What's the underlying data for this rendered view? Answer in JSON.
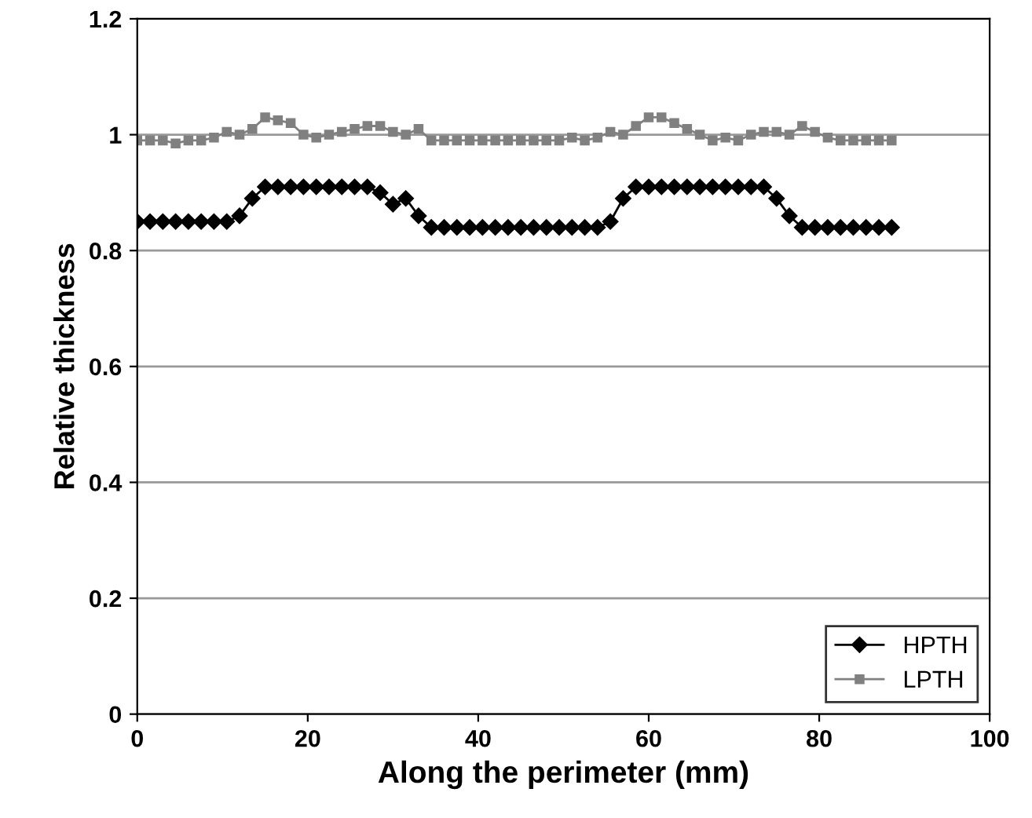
{
  "chart_data": {
    "type": "line",
    "xlabel": "Along the perimeter (mm)",
    "ylabel": "Relative thickness",
    "xlim": [
      0,
      100
    ],
    "xticks": [
      0,
      20,
      40,
      60,
      80,
      100
    ],
    "ylim": [
      0,
      1.2
    ],
    "yticks": [
      0,
      0.2,
      0.4,
      0.6,
      0.8,
      1,
      1.2
    ],
    "grid": "y",
    "legend": "bottom right",
    "series": [
      {
        "name": "HPTH",
        "color": "#000000",
        "marker": "diamond",
        "x": [
          0,
          1.5,
          3,
          4.5,
          6,
          7.5,
          9,
          10.5,
          12,
          13.5,
          15,
          16.5,
          18,
          19.5,
          21,
          22.5,
          24,
          25.5,
          27,
          28.5,
          30,
          31.5,
          33,
          34.5,
          36,
          37.5,
          39,
          40.5,
          42,
          43.5,
          45,
          46.5,
          48,
          49.5,
          51,
          52.5,
          54,
          55.5,
          57,
          58.5,
          60,
          61.5,
          63,
          64.5,
          66,
          67.5,
          69,
          70.5,
          72,
          73.5,
          75,
          76.5,
          78,
          79.5,
          81,
          82.5,
          84,
          85.5,
          87,
          88.5
        ],
        "values": [
          0.85,
          0.85,
          0.85,
          0.85,
          0.85,
          0.85,
          0.85,
          0.85,
          0.86,
          0.89,
          0.91,
          0.91,
          0.91,
          0.91,
          0.91,
          0.91,
          0.91,
          0.91,
          0.91,
          0.9,
          0.88,
          0.89,
          0.86,
          0.84,
          0.84,
          0.84,
          0.84,
          0.84,
          0.84,
          0.84,
          0.84,
          0.84,
          0.84,
          0.84,
          0.84,
          0.84,
          0.84,
          0.85,
          0.89,
          0.91,
          0.91,
          0.91,
          0.91,
          0.91,
          0.91,
          0.91,
          0.91,
          0.91,
          0.91,
          0.91,
          0.89,
          0.86,
          0.84,
          0.84,
          0.84,
          0.84,
          0.84,
          0.84,
          0.84,
          0.84
        ]
      },
      {
        "name": "LPTH",
        "color": "#808080",
        "marker": "square",
        "x": [
          0,
          1.5,
          3,
          4.5,
          6,
          7.5,
          9,
          10.5,
          12,
          13.5,
          15,
          16.5,
          18,
          19.5,
          21,
          22.5,
          24,
          25.5,
          27,
          28.5,
          30,
          31.5,
          33,
          34.5,
          36,
          37.5,
          39,
          40.5,
          42,
          43.5,
          45,
          46.5,
          48,
          49.5,
          51,
          52.5,
          54,
          55.5,
          57,
          58.5,
          60,
          61.5,
          63,
          64.5,
          66,
          67.5,
          69,
          70.5,
          72,
          73.5,
          75,
          76.5,
          78,
          79.5,
          81,
          82.5,
          84,
          85.5,
          87,
          88.5
        ],
        "values": [
          0.99,
          0.99,
          0.99,
          0.985,
          0.99,
          0.99,
          0.995,
          1.005,
          1.0,
          1.01,
          1.03,
          1.025,
          1.02,
          1.0,
          0.995,
          1.0,
          1.005,
          1.01,
          1.015,
          1.015,
          1.005,
          1.0,
          1.01,
          0.99,
          0.99,
          0.99,
          0.99,
          0.99,
          0.99,
          0.99,
          0.99,
          0.99,
          0.99,
          0.99,
          0.995,
          0.99,
          0.995,
          1.005,
          1.0,
          1.015,
          1.03,
          1.03,
          1.02,
          1.01,
          1.0,
          0.99,
          0.995,
          0.99,
          1.0,
          1.005,
          1.005,
          1.0,
          1.015,
          1.005,
          0.995,
          0.99,
          0.99,
          0.99,
          0.99,
          0.99
        ]
      }
    ]
  }
}
